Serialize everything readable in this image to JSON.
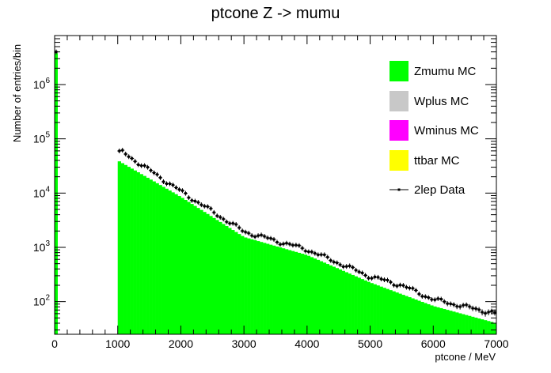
{
  "chart_data": {
    "type": "bar",
    "title": "ptcone Z -> mumu",
    "xlabel": "ptcone / MeV",
    "ylabel": "Number of entries/bin",
    "x_scale": "linear",
    "y_scale": "log",
    "xlim": [
      0,
      7000
    ],
    "ylim": [
      25,
      8000000
    ],
    "x_ticks": [
      {
        "v": 0,
        "label": "0"
      },
      {
        "v": 1000,
        "label": "1000"
      },
      {
        "v": 2000,
        "label": "2000"
      },
      {
        "v": 3000,
        "label": "3000"
      },
      {
        "v": 4000,
        "label": "4000"
      },
      {
        "v": 5000,
        "label": "5000"
      },
      {
        "v": 6000,
        "label": "6000"
      },
      {
        "v": 7000,
        "label": "7000"
      }
    ],
    "y_ticks": [
      {
        "v": 100,
        "base": "10",
        "exp": "2"
      },
      {
        "v": 1000,
        "base": "10",
        "exp": "3"
      },
      {
        "v": 10000,
        "base": "10",
        "exp": "4"
      },
      {
        "v": 100000,
        "base": "10",
        "exp": "5"
      },
      {
        "v": 1000000,
        "base": "10",
        "exp": "6"
      }
    ],
    "grid": false,
    "legend_position": "top-right",
    "bin_width": 50,
    "stack": [
      {
        "name": "Zmumu MC",
        "color": "#00ff00",
        "points": [
          [
            0,
            3800000
          ],
          [
            1000,
            40000
          ],
          [
            2000,
            8500
          ],
          [
            3000,
            1550
          ],
          [
            4000,
            720
          ],
          [
            5000,
            225
          ],
          [
            6000,
            83
          ],
          [
            7000,
            40
          ]
        ]
      },
      {
        "name": "Wplus MC",
        "color": "#c8c8c8",
        "points": []
      },
      {
        "name": "Wminus MC",
        "color": "#ff00ff",
        "points": []
      },
      {
        "name": "ttbar MC",
        "color": "#ffff00",
        "points": []
      }
    ],
    "data_series": {
      "name": "2lep Data",
      "color": "#000000",
      "first_value": 4000000,
      "points": [
        [
          1000,
          50000
        ],
        [
          1050,
          60000
        ],
        [
          2000,
          10800
        ],
        [
          3000,
          1950
        ],
        [
          4000,
          910
        ],
        [
          5000,
          290
        ],
        [
          5500,
          200
        ],
        [
          6000,
          110
        ],
        [
          7000,
          60
        ]
      ]
    }
  }
}
